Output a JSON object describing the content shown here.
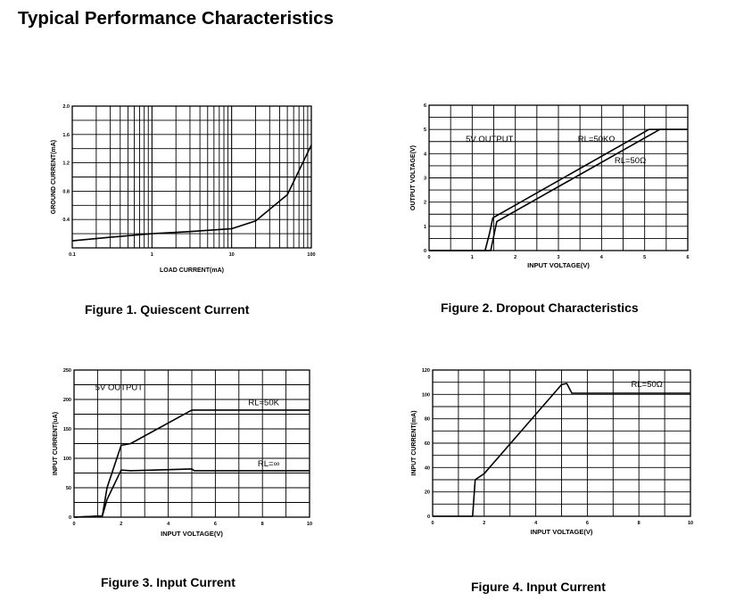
{
  "page": {
    "title": "Typical Performance Characteristics"
  },
  "chart_data": [
    {
      "id": "fig1",
      "type": "line",
      "caption": "Figure 1. Quiescent Current",
      "xlabel": "LOAD CURRENT(mA)",
      "ylabel": "GROUND CURRENT(mA)",
      "xscale": "log",
      "xlim": [
        0.1,
        100
      ],
      "ylim": [
        0,
        2.0
      ],
      "grid": true,
      "xticks": [
        {
          "v": 0.1,
          "t": "0.1"
        },
        {
          "v": 1,
          "t": "1"
        },
        {
          "v": 10,
          "t": "10"
        },
        {
          "v": 100,
          "t": "100"
        }
      ],
      "yticks": [
        {
          "v": 0.4,
          "t": "0.4"
        },
        {
          "v": 0.8,
          "t": "0.8"
        },
        {
          "v": 1.2,
          "t": "1.2"
        },
        {
          "v": 1.6,
          "t": "1.6"
        },
        {
          "v": 2.0,
          "t": "2.0"
        }
      ],
      "series": [
        {
          "x": [
            0.1,
            0.3,
            1,
            3,
            10,
            20,
            50,
            100
          ],
          "y": [
            0.1,
            0.15,
            0.2,
            0.23,
            0.27,
            0.38,
            0.75,
            1.45
          ]
        }
      ],
      "annotations": []
    },
    {
      "id": "fig2",
      "type": "line",
      "caption": "Figure 2. Dropout Characteristics",
      "xlabel": "INPUT VOLTAGE(V)",
      "ylabel": "OUTPUT VOLTAGE(V)",
      "xlim": [
        0,
        6
      ],
      "ylim": [
        0,
        6
      ],
      "grid": true,
      "xticks": [
        {
          "v": 0,
          "t": "0"
        },
        {
          "v": 1,
          "t": "1"
        },
        {
          "v": 2,
          "t": "2"
        },
        {
          "v": 3,
          "t": "3"
        },
        {
          "v": 4,
          "t": "4"
        },
        {
          "v": 5,
          "t": "5"
        },
        {
          "v": 6,
          "t": "6"
        }
      ],
      "yticks": [
        {
          "v": 0,
          "t": "0"
        },
        {
          "v": 1,
          "t": "1"
        },
        {
          "v": 2,
          "t": "2"
        },
        {
          "v": 3,
          "t": "3"
        },
        {
          "v": 4,
          "t": "4"
        },
        {
          "v": 5,
          "t": "5"
        },
        {
          "v": 6,
          "t": "6"
        }
      ],
      "series": [
        {
          "x": [
            0,
            1.3,
            1.4,
            1.48,
            5.1,
            6.0
          ],
          "y": [
            0,
            0,
            0.7,
            1.35,
            5.0,
            5.0
          ]
        },
        {
          "x": [
            0,
            1.43,
            1.5,
            1.57,
            5.35,
            6.0
          ],
          "y": [
            0,
            0,
            0.6,
            1.2,
            5.0,
            5.0
          ]
        }
      ],
      "annotations": [
        {
          "text": "5V OUTPUT",
          "x": 0.85,
          "y": 4.5
        },
        {
          "text": "RL=50KΩ",
          "x": 3.45,
          "y": 4.5
        },
        {
          "text": "RL=50Ω",
          "x": 4.3,
          "y": 3.6
        }
      ]
    },
    {
      "id": "fig3",
      "type": "line",
      "caption": "Figure 3. Input Current",
      "xlabel": "INPUT VOLTAGE(V)",
      "ylabel": "INPUT CURRENT(uA)",
      "xlim": [
        0,
        10
      ],
      "ylim": [
        0,
        250
      ],
      "grid": true,
      "xticks": [
        {
          "v": 0,
          "t": "0"
        },
        {
          "v": 2,
          "t": "2"
        },
        {
          "v": 4,
          "t": "4"
        },
        {
          "v": 6,
          "t": "6"
        },
        {
          "v": 8,
          "t": "8"
        },
        {
          "v": 10,
          "t": "10"
        }
      ],
      "yticks": [
        {
          "v": 0,
          "t": "0"
        },
        {
          "v": 50,
          "t": "50"
        },
        {
          "v": 100,
          "t": "100"
        },
        {
          "v": 150,
          "t": "150"
        },
        {
          "v": 200,
          "t": "200"
        },
        {
          "v": 250,
          "t": "250"
        }
      ],
      "series": [
        {
          "x": [
            0,
            1.2,
            1.4,
            2.0,
            2.4,
            5.0,
            10.0
          ],
          "y": [
            0,
            2,
            50,
            122,
            125,
            182,
            182
          ]
        },
        {
          "x": [
            0,
            1.2,
            1.4,
            2.0,
            2.4,
            5.0,
            5.1,
            10.0
          ],
          "y": [
            0,
            2,
            30,
            80,
            79,
            82,
            79,
            79
          ]
        }
      ],
      "annotations": [
        {
          "text": "5V OUTPUT",
          "x": 0.9,
          "y": 216
        },
        {
          "text": "RL=50K",
          "x": 7.4,
          "y": 190
        },
        {
          "text": "RL=∞",
          "x": 7.8,
          "y": 86
        }
      ]
    },
    {
      "id": "fig4",
      "type": "line",
      "caption": "Figure 4. Input Current",
      "xlabel": "INPUT VOLTAGE(V)",
      "ylabel": "INPUT CURRENT(mA)",
      "xlim": [
        0,
        10
      ],
      "ylim": [
        0,
        120
      ],
      "grid": true,
      "xticks": [
        {
          "v": 0,
          "t": "0"
        },
        {
          "v": 2,
          "t": "2"
        },
        {
          "v": 4,
          "t": "4"
        },
        {
          "v": 6,
          "t": "6"
        },
        {
          "v": 8,
          "t": "8"
        },
        {
          "v": 10,
          "t": "10"
        }
      ],
      "yticks": [
        {
          "v": 0,
          "t": "0"
        },
        {
          "v": 20,
          "t": "20"
        },
        {
          "v": 40,
          "t": "40"
        },
        {
          "v": 60,
          "t": "60"
        },
        {
          "v": 80,
          "t": "80"
        },
        {
          "v": 100,
          "t": "100"
        },
        {
          "v": 120,
          "t": "120"
        }
      ],
      "series": [
        {
          "x": [
            0,
            1.55,
            1.65,
            2.0,
            5.0,
            5.2,
            5.4,
            10.0
          ],
          "y": [
            0,
            0,
            30,
            35,
            108,
            109,
            101,
            101
          ]
        }
      ],
      "annotations": [
        {
          "text": "RL=50Ω",
          "x": 7.7,
          "y": 106
        }
      ]
    }
  ]
}
